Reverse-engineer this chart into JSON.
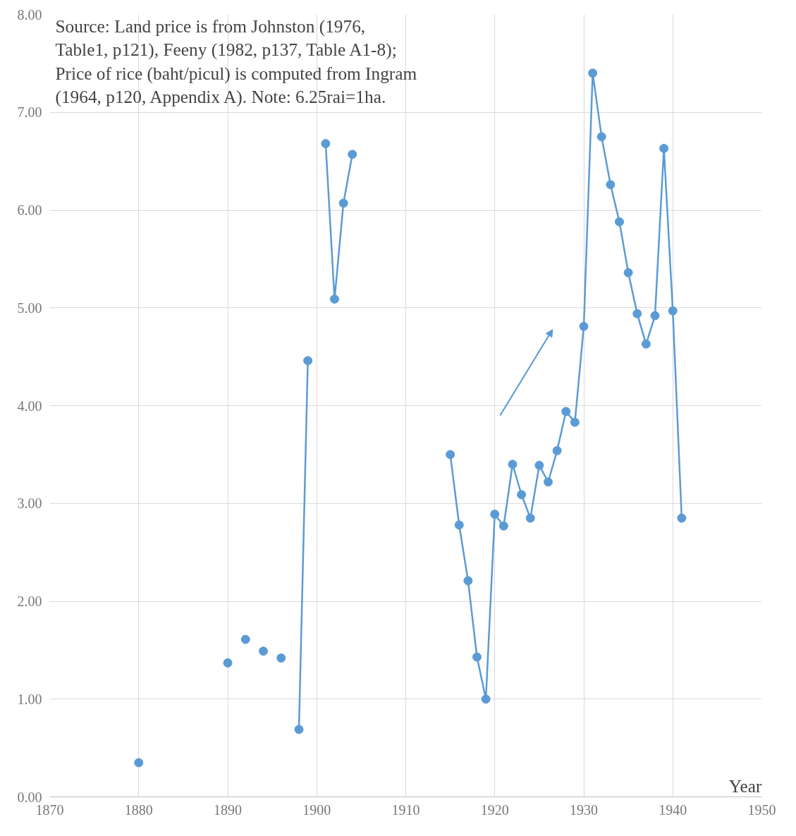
{
  "chart_data": {
    "type": "line",
    "xlabel": "Year",
    "annotations": [
      "Source: Land price is from Johnston (1976,\n Table1, p121), Feeny (1982, p137, Table A1-8);\nPrice of rice (baht/picul) is computed from Ingram\n(1964, p120, Appendix A). Note: 6.25rai=1ha."
    ],
    "x": [
      1880,
      1881,
      1882,
      1883,
      1884,
      1885,
      1886,
      1887,
      1888,
      1889,
      1890,
      1891,
      1892,
      1893,
      1894,
      1895,
      1896,
      1897,
      1898,
      1899,
      1900,
      1901,
      1902,
      1903,
      1904,
      1905,
      1906,
      1907,
      1908,
      1909,
      1910,
      1911,
      1912,
      1913,
      1914,
      1915,
      1916,
      1917,
      1918,
      1919,
      1920,
      1921,
      1922,
      1923,
      1924,
      1925,
      1926,
      1927,
      1928,
      1929,
      1930,
      1931,
      1932,
      1933,
      1934,
      1935,
      1936,
      1937,
      1938,
      1939,
      1940,
      1941
    ],
    "series": [
      {
        "color": "#5b9bd5",
        "values": [
          0.35,
          null,
          null,
          null,
          null,
          null,
          null,
          null,
          null,
          null,
          1.37,
          null,
          1.61,
          null,
          1.49,
          null,
          1.42,
          null,
          0.69,
          4.46,
          null,
          6.68,
          5.09,
          6.07,
          6.57,
          null,
          null,
          null,
          null,
          null,
          null,
          null,
          null,
          null,
          null,
          3.5,
          2.78,
          2.21,
          1.43,
          1.0,
          2.89,
          2.77,
          3.4,
          3.09,
          2.85,
          3.39,
          3.22,
          3.54,
          3.94,
          3.83,
          4.81,
          7.4,
          6.75,
          6.26,
          5.88,
          5.36,
          4.94,
          4.63,
          4.92,
          6.63,
          4.97,
          2.85
        ]
      }
    ],
    "xlim": [
      1870,
      1950
    ],
    "xticks": [
      1870,
      1880,
      1890,
      1900,
      1910,
      1920,
      1930,
      1940,
      1950
    ],
    "ylim": [
      0,
      8
    ],
    "yticks": [
      {
        "value": 0,
        "label": "0.00"
      },
      {
        "value": 1,
        "label": "1.00"
      },
      {
        "value": 2,
        "label": "2.00"
      },
      {
        "value": 3,
        "label": "3.00"
      },
      {
        "value": 4,
        "label": "4.00"
      },
      {
        "value": 5,
        "label": "5.00"
      },
      {
        "value": 6,
        "label": "6.00"
      },
      {
        "value": 7,
        "label": "7.00"
      },
      {
        "value": 8,
        "label": "8.00"
      }
    ],
    "grid": true,
    "marker": "circle",
    "line_style": "solid"
  }
}
